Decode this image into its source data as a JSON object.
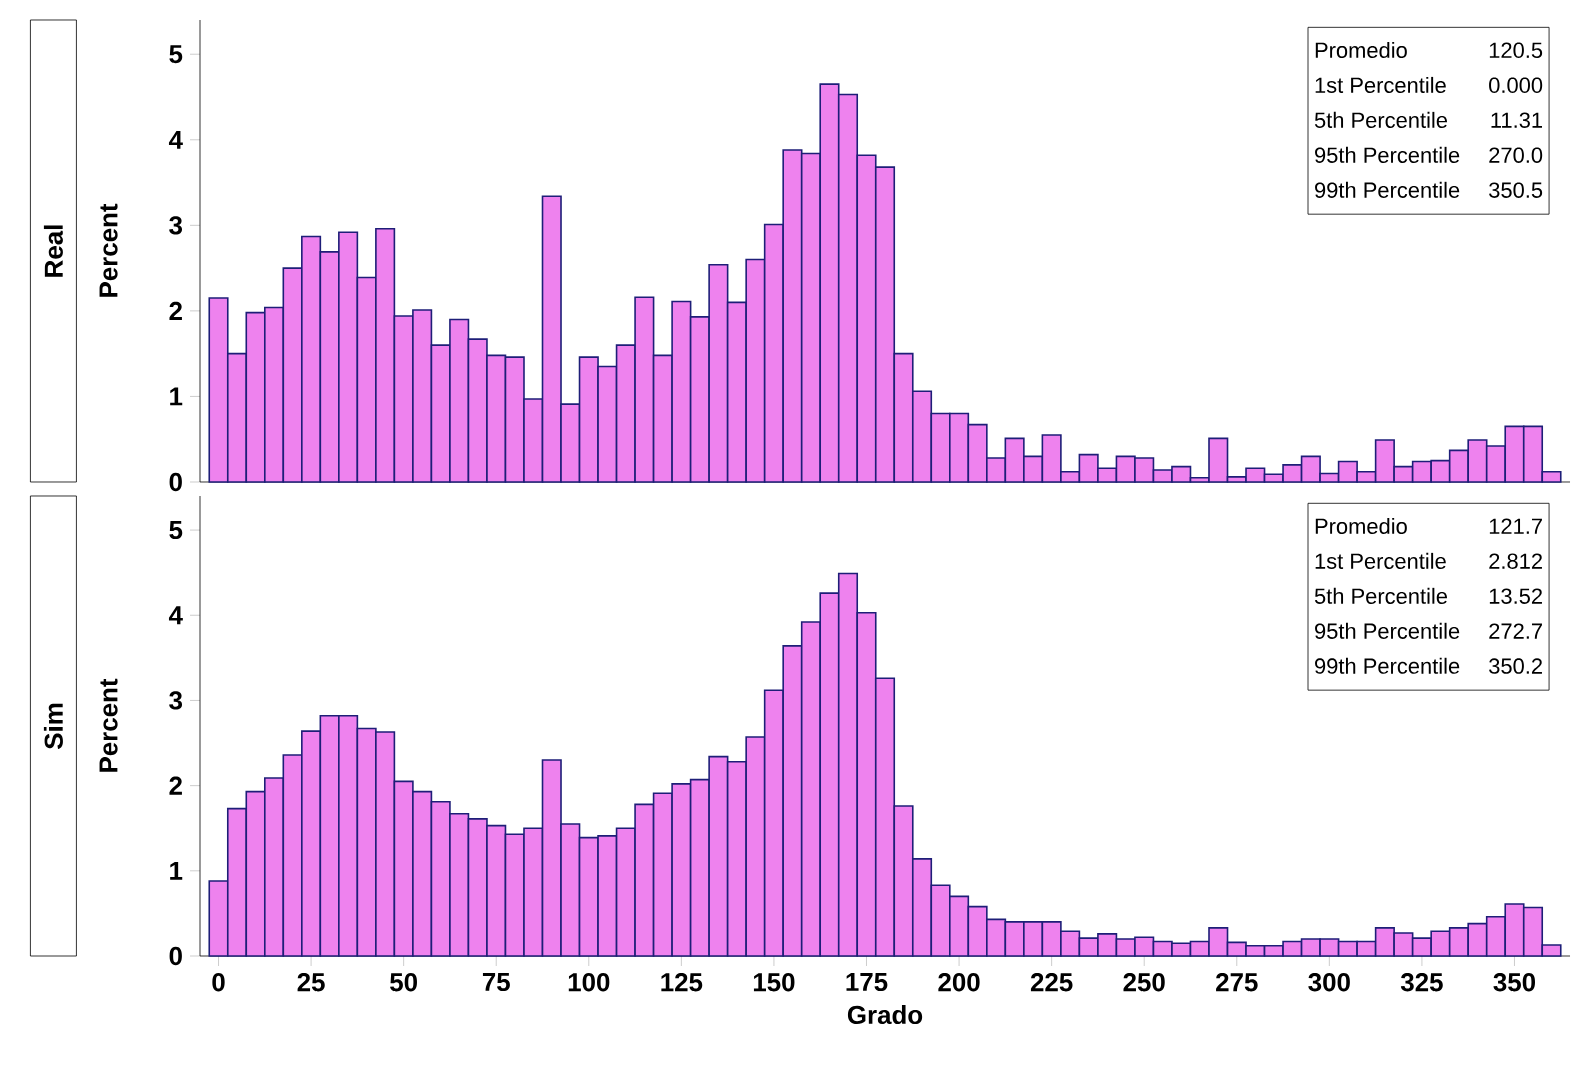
{
  "chart_data": [
    {
      "type": "histogram",
      "title": "Real",
      "ylabel": "Percent",
      "color": "#ee82ee",
      "bins": [
        -2.5,
        2.5,
        7.5,
        12.5,
        17.5,
        22.5,
        27.5,
        32.5,
        37.5,
        42.5,
        47.5,
        52.5,
        57.5,
        62.5,
        67.5,
        72.5,
        77.5,
        82.5,
        87.5,
        92.5,
        97.5,
        102.5,
        107.5,
        112.5,
        117.5,
        122.5,
        127.5,
        132.5,
        137.5,
        142.5,
        147.5,
        152.5,
        157.5,
        162.5,
        167.5,
        172.5,
        177.5,
        182.5,
        187.5,
        192.5,
        197.5,
        202.5,
        207.5,
        212.5,
        217.5,
        222.5,
        227.5,
        232.5,
        237.5,
        242.5,
        247.5,
        252.5,
        257.5,
        262.5,
        267.5,
        272.5,
        277.5,
        282.5,
        287.5,
        292.5,
        297.5,
        302.5,
        307.5,
        312.5,
        317.5,
        322.5,
        327.5,
        332.5,
        337.5,
        342.5,
        347.5,
        352.5,
        357.5,
        362.5
      ],
      "values": [
        2.15,
        1.5,
        1.98,
        2.04,
        2.5,
        2.87,
        2.69,
        2.92,
        2.39,
        2.96,
        1.94,
        2.01,
        1.6,
        1.9,
        1.67,
        1.48,
        1.46,
        0.97,
        3.34,
        0.91,
        1.46,
        1.35,
        1.6,
        2.16,
        1.48,
        2.11,
        1.93,
        2.54,
        2.1,
        2.6,
        3.01,
        3.88,
        3.84,
        4.65,
        4.53,
        3.82,
        3.68,
        1.5,
        1.06,
        0.8,
        0.8,
        0.67,
        0.28,
        0.51,
        0.3,
        0.55,
        0.12,
        0.32,
        0.16,
        0.3,
        0.28,
        0.14,
        0.18,
        0.05,
        0.51,
        0.06,
        0.16,
        0.09,
        0.2,
        0.3,
        0.1,
        0.24,
        0.12,
        0.49,
        0.18,
        0.24,
        0.25,
        0.37,
        0.49,
        0.42,
        0.65,
        0.65,
        0.12
      ],
      "xlim": [
        -5,
        365
      ],
      "ylim": [
        0,
        5.4
      ],
      "yticks": [
        0,
        1,
        2,
        3,
        4,
        5
      ],
      "tick_labels": "y",
      "annotations": [
        "Promedio",
        "120.5",
        "1st Percentile",
        "0.000",
        "5th Percentile",
        "11.31",
        "95th Percentile",
        "270.0",
        "99th Percentile",
        "350.5"
      ]
    },
    {
      "type": "histogram",
      "title": "Sim",
      "ylabel": "Percent",
      "xlabel": "Grado",
      "color": "#ee82ee",
      "bins": [
        -2.5,
        2.5,
        7.5,
        12.5,
        17.5,
        22.5,
        27.5,
        32.5,
        37.5,
        42.5,
        47.5,
        52.5,
        57.5,
        62.5,
        67.5,
        72.5,
        77.5,
        82.5,
        87.5,
        92.5,
        97.5,
        102.5,
        107.5,
        112.5,
        117.5,
        122.5,
        127.5,
        132.5,
        137.5,
        142.5,
        147.5,
        152.5,
        157.5,
        162.5,
        167.5,
        172.5,
        177.5,
        182.5,
        187.5,
        192.5,
        197.5,
        202.5,
        207.5,
        212.5,
        217.5,
        222.5,
        227.5,
        232.5,
        237.5,
        242.5,
        247.5,
        252.5,
        257.5,
        262.5,
        267.5,
        272.5,
        277.5,
        282.5,
        287.5,
        292.5,
        297.5,
        302.5,
        307.5,
        312.5,
        317.5,
        322.5,
        327.5,
        332.5,
        337.5,
        342.5,
        347.5,
        352.5,
        357.5,
        362.5
      ],
      "values": [
        0.88,
        1.73,
        1.93,
        2.09,
        2.36,
        2.64,
        2.82,
        2.82,
        2.67,
        2.63,
        2.05,
        1.93,
        1.81,
        1.67,
        1.61,
        1.53,
        1.43,
        1.5,
        2.3,
        1.55,
        1.39,
        1.41,
        1.5,
        1.78,
        1.91,
        2.02,
        2.07,
        2.34,
        2.28,
        2.57,
        3.12,
        3.64,
        3.92,
        4.26,
        4.49,
        4.03,
        3.26,
        1.76,
        1.14,
        0.83,
        0.7,
        0.58,
        0.43,
        0.4,
        0.4,
        0.4,
        0.29,
        0.21,
        0.26,
        0.2,
        0.22,
        0.17,
        0.15,
        0.17,
        0.33,
        0.16,
        0.12,
        0.12,
        0.17,
        0.2,
        0.2,
        0.17,
        0.17,
        0.33,
        0.27,
        0.21,
        0.29,
        0.33,
        0.38,
        0.46,
        0.61,
        0.57,
        0.13
      ],
      "xlim": [
        -5,
        365
      ],
      "ylim": [
        0,
        5.4
      ],
      "yticks": [
        0,
        1,
        2,
        3,
        4,
        5
      ],
      "xticks": [
        0,
        25,
        50,
        75,
        100,
        125,
        150,
        175,
        200,
        225,
        250,
        275,
        300,
        325,
        350
      ],
      "annotations": [
        "Promedio",
        "121.7",
        "1st Percentile",
        "2.812",
        "5th Percentile",
        "13.52",
        "95th Percentile",
        "272.7",
        "99th Percentile",
        "350.2"
      ]
    }
  ]
}
